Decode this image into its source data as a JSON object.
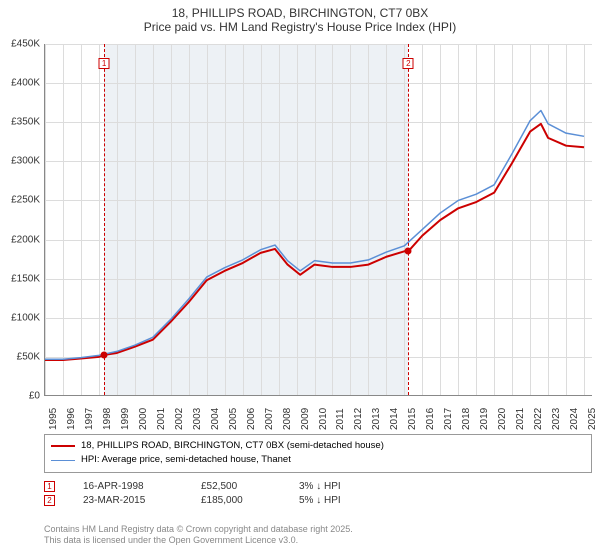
{
  "title_line1": "18, PHILLIPS ROAD, BIRCHINGTON, CT7 0BX",
  "title_line2": "Price paid vs. HM Land Registry's House Price Index (HPI)",
  "chart": {
    "type": "line",
    "background_color": "#ffffff",
    "grid_color": "#dcdcdc",
    "axis_color": "#888888",
    "y": {
      "min": 0,
      "max": 450,
      "step": 50,
      "labels": [
        "£0",
        "£50K",
        "£100K",
        "£150K",
        "£200K",
        "£250K",
        "£300K",
        "£350K",
        "£400K",
        "£450K"
      ]
    },
    "x": {
      "min": 1995,
      "max": 2025.5,
      "labels": [
        "1995",
        "1996",
        "1997",
        "1998",
        "1999",
        "2000",
        "2001",
        "2002",
        "2003",
        "2004",
        "2005",
        "2006",
        "2007",
        "2008",
        "2009",
        "2010",
        "2011",
        "2012",
        "2013",
        "2014",
        "2015",
        "2016",
        "2017",
        "2018",
        "2019",
        "2020",
        "2021",
        "2022",
        "2023",
        "2024",
        "2025"
      ]
    },
    "shaded_band": {
      "start_year": 1998.29,
      "end_year": 2015.22,
      "color": "rgba(173,190,210,0.22)"
    },
    "series": [
      {
        "name": "18, PHILLIPS ROAD, BIRCHINGTON, CT7 0BX (semi-detached house)",
        "color": "#cc0000",
        "line_width": 2,
        "points": [
          [
            1995,
            46
          ],
          [
            1996,
            46
          ],
          [
            1997,
            48
          ],
          [
            1998,
            50
          ],
          [
            1998.3,
            52.5
          ],
          [
            1999,
            55
          ],
          [
            2000,
            63
          ],
          [
            2001,
            72
          ],
          [
            2002,
            95
          ],
          [
            2003,
            120
          ],
          [
            2004,
            148
          ],
          [
            2005,
            160
          ],
          [
            2006,
            170
          ],
          [
            2007,
            183
          ],
          [
            2007.8,
            188
          ],
          [
            2008.5,
            168
          ],
          [
            2009.2,
            155
          ],
          [
            2010,
            168
          ],
          [
            2011,
            165
          ],
          [
            2012,
            165
          ],
          [
            2013,
            168
          ],
          [
            2014,
            178
          ],
          [
            2015,
            185
          ],
          [
            2015.22,
            185
          ],
          [
            2016,
            205
          ],
          [
            2017,
            225
          ],
          [
            2018,
            240
          ],
          [
            2019,
            248
          ],
          [
            2020,
            260
          ],
          [
            2021,
            298
          ],
          [
            2022,
            338
          ],
          [
            2022.6,
            348
          ],
          [
            2023,
            330
          ],
          [
            2024,
            320
          ],
          [
            2025,
            318
          ]
        ],
        "sale_dots": [
          {
            "year": 1998.29,
            "value": 52.5
          },
          {
            "year": 2015.22,
            "value": 185
          }
        ]
      },
      {
        "name": "HPI: Average price, semi-detached house, Thanet",
        "color": "#5b8fd6",
        "line_width": 1.5,
        "points": [
          [
            1995,
            47
          ],
          [
            1996,
            47
          ],
          [
            1997,
            49
          ],
          [
            1998,
            52
          ],
          [
            1999,
            57
          ],
          [
            2000,
            65
          ],
          [
            2001,
            75
          ],
          [
            2002,
            98
          ],
          [
            2003,
            124
          ],
          [
            2004,
            152
          ],
          [
            2005,
            164
          ],
          [
            2006,
            174
          ],
          [
            2007,
            187
          ],
          [
            2007.8,
            193
          ],
          [
            2008.5,
            173
          ],
          [
            2009.2,
            160
          ],
          [
            2010,
            173
          ],
          [
            2011,
            170
          ],
          [
            2012,
            170
          ],
          [
            2013,
            174
          ],
          [
            2014,
            184
          ],
          [
            2015,
            192
          ],
          [
            2016,
            213
          ],
          [
            2017,
            234
          ],
          [
            2018,
            250
          ],
          [
            2019,
            258
          ],
          [
            2020,
            270
          ],
          [
            2021,
            310
          ],
          [
            2022,
            352
          ],
          [
            2022.6,
            365
          ],
          [
            2023,
            348
          ],
          [
            2024,
            336
          ],
          [
            2025,
            332
          ]
        ]
      }
    ],
    "markers": [
      {
        "n": "1",
        "date": "16-APR-1998",
        "year": 1998.29,
        "price": "£52,500",
        "pct": "3% ↓ HPI",
        "color": "#cc0000"
      },
      {
        "n": "2",
        "date": "23-MAR-2015",
        "year": 2015.22,
        "price": "£185,000",
        "pct": "5% ↓ HPI",
        "color": "#cc0000"
      }
    ]
  },
  "legend": {
    "series1_label": "18, PHILLIPS ROAD, BIRCHINGTON, CT7 0BX (semi-detached house)",
    "series2_label": "HPI: Average price, semi-detached house, Thanet"
  },
  "attribution_line1": "Contains HM Land Registry data © Crown copyright and database right 2025.",
  "attribution_line2": "This data is licensed under the Open Government Licence v3.0."
}
